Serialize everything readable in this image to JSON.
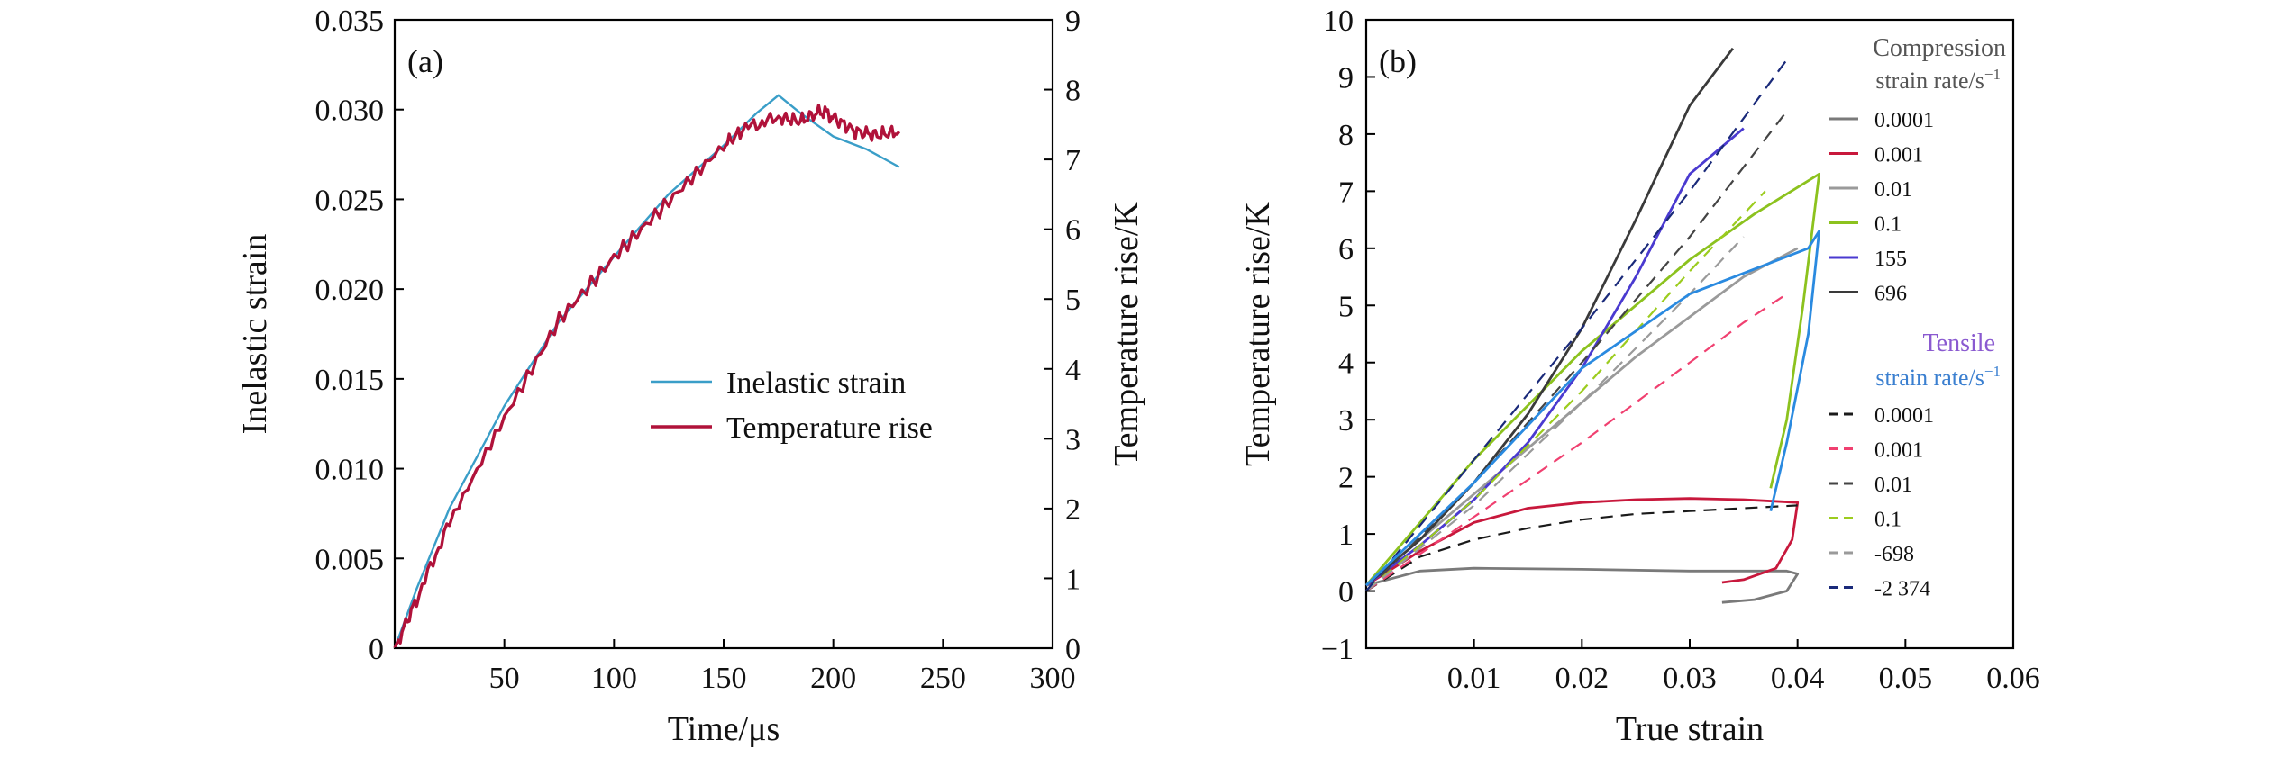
{
  "chart_data": [
    {
      "type": "line",
      "panel_label": "(a)",
      "xlabel": "Time/μs",
      "ylabel_left": "Inelastic strain",
      "ylabel_right": "Temperature rise/K",
      "xlim": [
        0,
        300
      ],
      "ylim_left": [
        0,
        0.035
      ],
      "ylim_right": [
        0,
        9
      ],
      "x_ticks": [
        "50",
        "100",
        "150",
        "200",
        "250",
        "300"
      ],
      "y_ticks_left": [
        "0",
        "0.005",
        "0.010",
        "0.015",
        "0.020",
        "0.025",
        "0.030",
        "0.035"
      ],
      "y_ticks_right": [
        "0",
        "1",
        "2",
        "3",
        "4",
        "5",
        "6",
        "7",
        "8",
        "9"
      ],
      "legend_position": "center-right",
      "series": [
        {
          "name": "Inelastic strain",
          "axis": "left",
          "color": "#3a9ec8",
          "x": [
            0,
            10,
            25,
            50,
            75,
            100,
            125,
            150,
            165,
            175,
            185,
            200,
            215,
            230
          ],
          "y": [
            0,
            0.0033,
            0.0078,
            0.0135,
            0.0182,
            0.0218,
            0.0253,
            0.028,
            0.0298,
            0.0308,
            0.0298,
            0.0285,
            0.0278,
            0.0268
          ]
        },
        {
          "name": "Temperature rise",
          "axis": "right",
          "color": "#b0123a",
          "x": [
            0,
            10,
            25,
            50,
            75,
            100,
            125,
            150,
            160,
            175,
            185,
            195,
            200,
            210,
            220,
            230
          ],
          "y": [
            0,
            0.7,
            1.8,
            3.3,
            4.7,
            5.6,
            6.4,
            7.2,
            7.45,
            7.6,
            7.55,
            7.7,
            7.6,
            7.4,
            7.35,
            7.4
          ]
        }
      ]
    },
    {
      "type": "line",
      "panel_label": "(b)",
      "xlabel": "True strain",
      "ylabel": "Temperature rise/K",
      "xlim": [
        0,
        0.06
      ],
      "ylim": [
        -1,
        10
      ],
      "x_ticks": [
        "0.01",
        "0.02",
        "0.03",
        "0.04",
        "0.05",
        "0.06"
      ],
      "y_ticks": [
        "−1",
        "0",
        "1",
        "2",
        "3",
        "4",
        "5",
        "6",
        "7",
        "8",
        "9",
        "10"
      ],
      "legend_position": "right",
      "legend_groups": [
        {
          "title_line1": "Compression",
          "title_line2": "strain rate/s",
          "title_sup": "−1",
          "title_color": "#555555",
          "entries": [
            "0.0001",
            "0.001",
            "0.01",
            "0.1",
            "155",
            "696"
          ]
        },
        {
          "title_line1": "Tensile",
          "title_line2": "strain rate/s",
          "title_sup": "−1",
          "title_color": "#3a7fd0",
          "title_line1_color": "#8a5ad0",
          "entries": [
            "0.0001",
            "0.001",
            "0.01",
            "0.1",
            "-698",
            "-2 374"
          ]
        }
      ],
      "series": [
        {
          "name": "0.0001",
          "group": "compression",
          "style": "solid",
          "color": "#7a7a7a",
          "x": [
            0,
            0.005,
            0.01,
            0.02,
            0.03,
            0.039,
            0.04,
            0.039,
            0.036,
            0.033
          ],
          "y": [
            0.1,
            0.35,
            0.4,
            0.38,
            0.35,
            0.35,
            0.3,
            0.0,
            -0.15,
            -0.2
          ]
        },
        {
          "name": "0.001",
          "group": "compression",
          "style": "solid",
          "color": "#c8183c",
          "x": [
            0,
            0.005,
            0.01,
            0.015,
            0.02,
            0.025,
            0.03,
            0.035,
            0.04,
            0.0395,
            0.038,
            0.035,
            0.033
          ],
          "y": [
            0.1,
            0.7,
            1.2,
            1.45,
            1.55,
            1.6,
            1.62,
            1.6,
            1.55,
            0.9,
            0.4,
            0.2,
            0.15
          ]
        },
        {
          "name": "0.01",
          "group": "compression",
          "style": "solid",
          "color": "#9a9a9a",
          "x": [
            0,
            0.005,
            0.01,
            0.015,
            0.02,
            0.025,
            0.03,
            0.035,
            0.04
          ],
          "y": [
            0.1,
            0.9,
            1.7,
            2.5,
            3.3,
            4.1,
            4.8,
            5.5,
            6.0
          ]
        },
        {
          "name": "0.1",
          "group": "compression",
          "style": "solid",
          "color": "#8cc21e",
          "x": [
            0,
            0.01,
            0.02,
            0.03,
            0.036,
            0.042,
            0.0405,
            0.039,
            0.0375
          ],
          "y": [
            0.1,
            2.3,
            4.2,
            5.8,
            6.6,
            7.3,
            5.0,
            3.0,
            1.8
          ]
        },
        {
          "name": "155",
          "group": "compression",
          "style": "solid",
          "color": "#4a3ad0",
          "x": [
            0,
            0.005,
            0.01,
            0.015,
            0.02,
            0.025,
            0.03,
            0.035
          ],
          "y": [
            0.1,
            0.8,
            1.6,
            2.6,
            3.9,
            5.5,
            7.3,
            8.1
          ]
        },
        {
          "name": "696",
          "group": "compression",
          "style": "solid",
          "color": "#3a3a3a",
          "x": [
            0,
            0.005,
            0.01,
            0.015,
            0.02,
            0.025,
            0.03,
            0.034
          ],
          "y": [
            0.1,
            0.9,
            1.9,
            3.1,
            4.6,
            6.5,
            8.5,
            9.5
          ]
        },
        {
          "name": "0.0001",
          "group": "tensile",
          "style": "dashed",
          "color": "#1a1a1a",
          "x": [
            0,
            0.005,
            0.01,
            0.015,
            0.02,
            0.025,
            0.03,
            0.035,
            0.04
          ],
          "y": [
            0.0,
            0.6,
            0.9,
            1.1,
            1.25,
            1.35,
            1.4,
            1.45,
            1.5
          ]
        },
        {
          "name": "0.001",
          "group": "tensile",
          "style": "dashed",
          "color": "#f04070",
          "x": [
            0,
            0.01,
            0.02,
            0.03,
            0.035,
            0.039
          ],
          "y": [
            0.0,
            1.3,
            2.6,
            4.0,
            4.7,
            5.2
          ]
        },
        {
          "name": "0.01",
          "group": "tensile",
          "style": "dashed",
          "color": "#444444",
          "x": [
            0,
            0.01,
            0.02,
            0.03,
            0.039
          ],
          "y": [
            0.0,
            1.9,
            4.0,
            6.2,
            8.4
          ]
        },
        {
          "name": "0.1",
          "group": "tensile",
          "style": "dashed",
          "color": "#9ccc1e",
          "x": [
            0,
            0.01,
            0.02,
            0.03,
            0.037
          ],
          "y": [
            0.0,
            1.6,
            3.5,
            5.6,
            7.0
          ]
        },
        {
          "name": "-698",
          "group": "tensile",
          "style": "dashed",
          "color": "#9a9a9a",
          "x": [
            0,
            0.01,
            0.02,
            0.03,
            0.035
          ],
          "y": [
            0.0,
            1.5,
            3.3,
            5.2,
            6.2
          ]
        },
        {
          "name": "-2 374",
          "group": "tensile",
          "style": "dashed",
          "color": "#1a2a7a",
          "x": [
            0,
            0.01,
            0.02,
            0.03,
            0.039
          ],
          "y": [
            0.0,
            2.3,
            4.6,
            7.0,
            9.3
          ]
        },
        {
          "name": "tensile-blue",
          "group": "extra",
          "style": "solid",
          "color": "#2a8ae0",
          "x": [
            0,
            0.01,
            0.02,
            0.03,
            0.041,
            0.042,
            0.041,
            0.039,
            0.0375
          ],
          "y": [
            0.1,
            1.9,
            3.9,
            5.2,
            6.0,
            6.3,
            4.5,
            2.6,
            1.4
          ]
        }
      ]
    }
  ]
}
